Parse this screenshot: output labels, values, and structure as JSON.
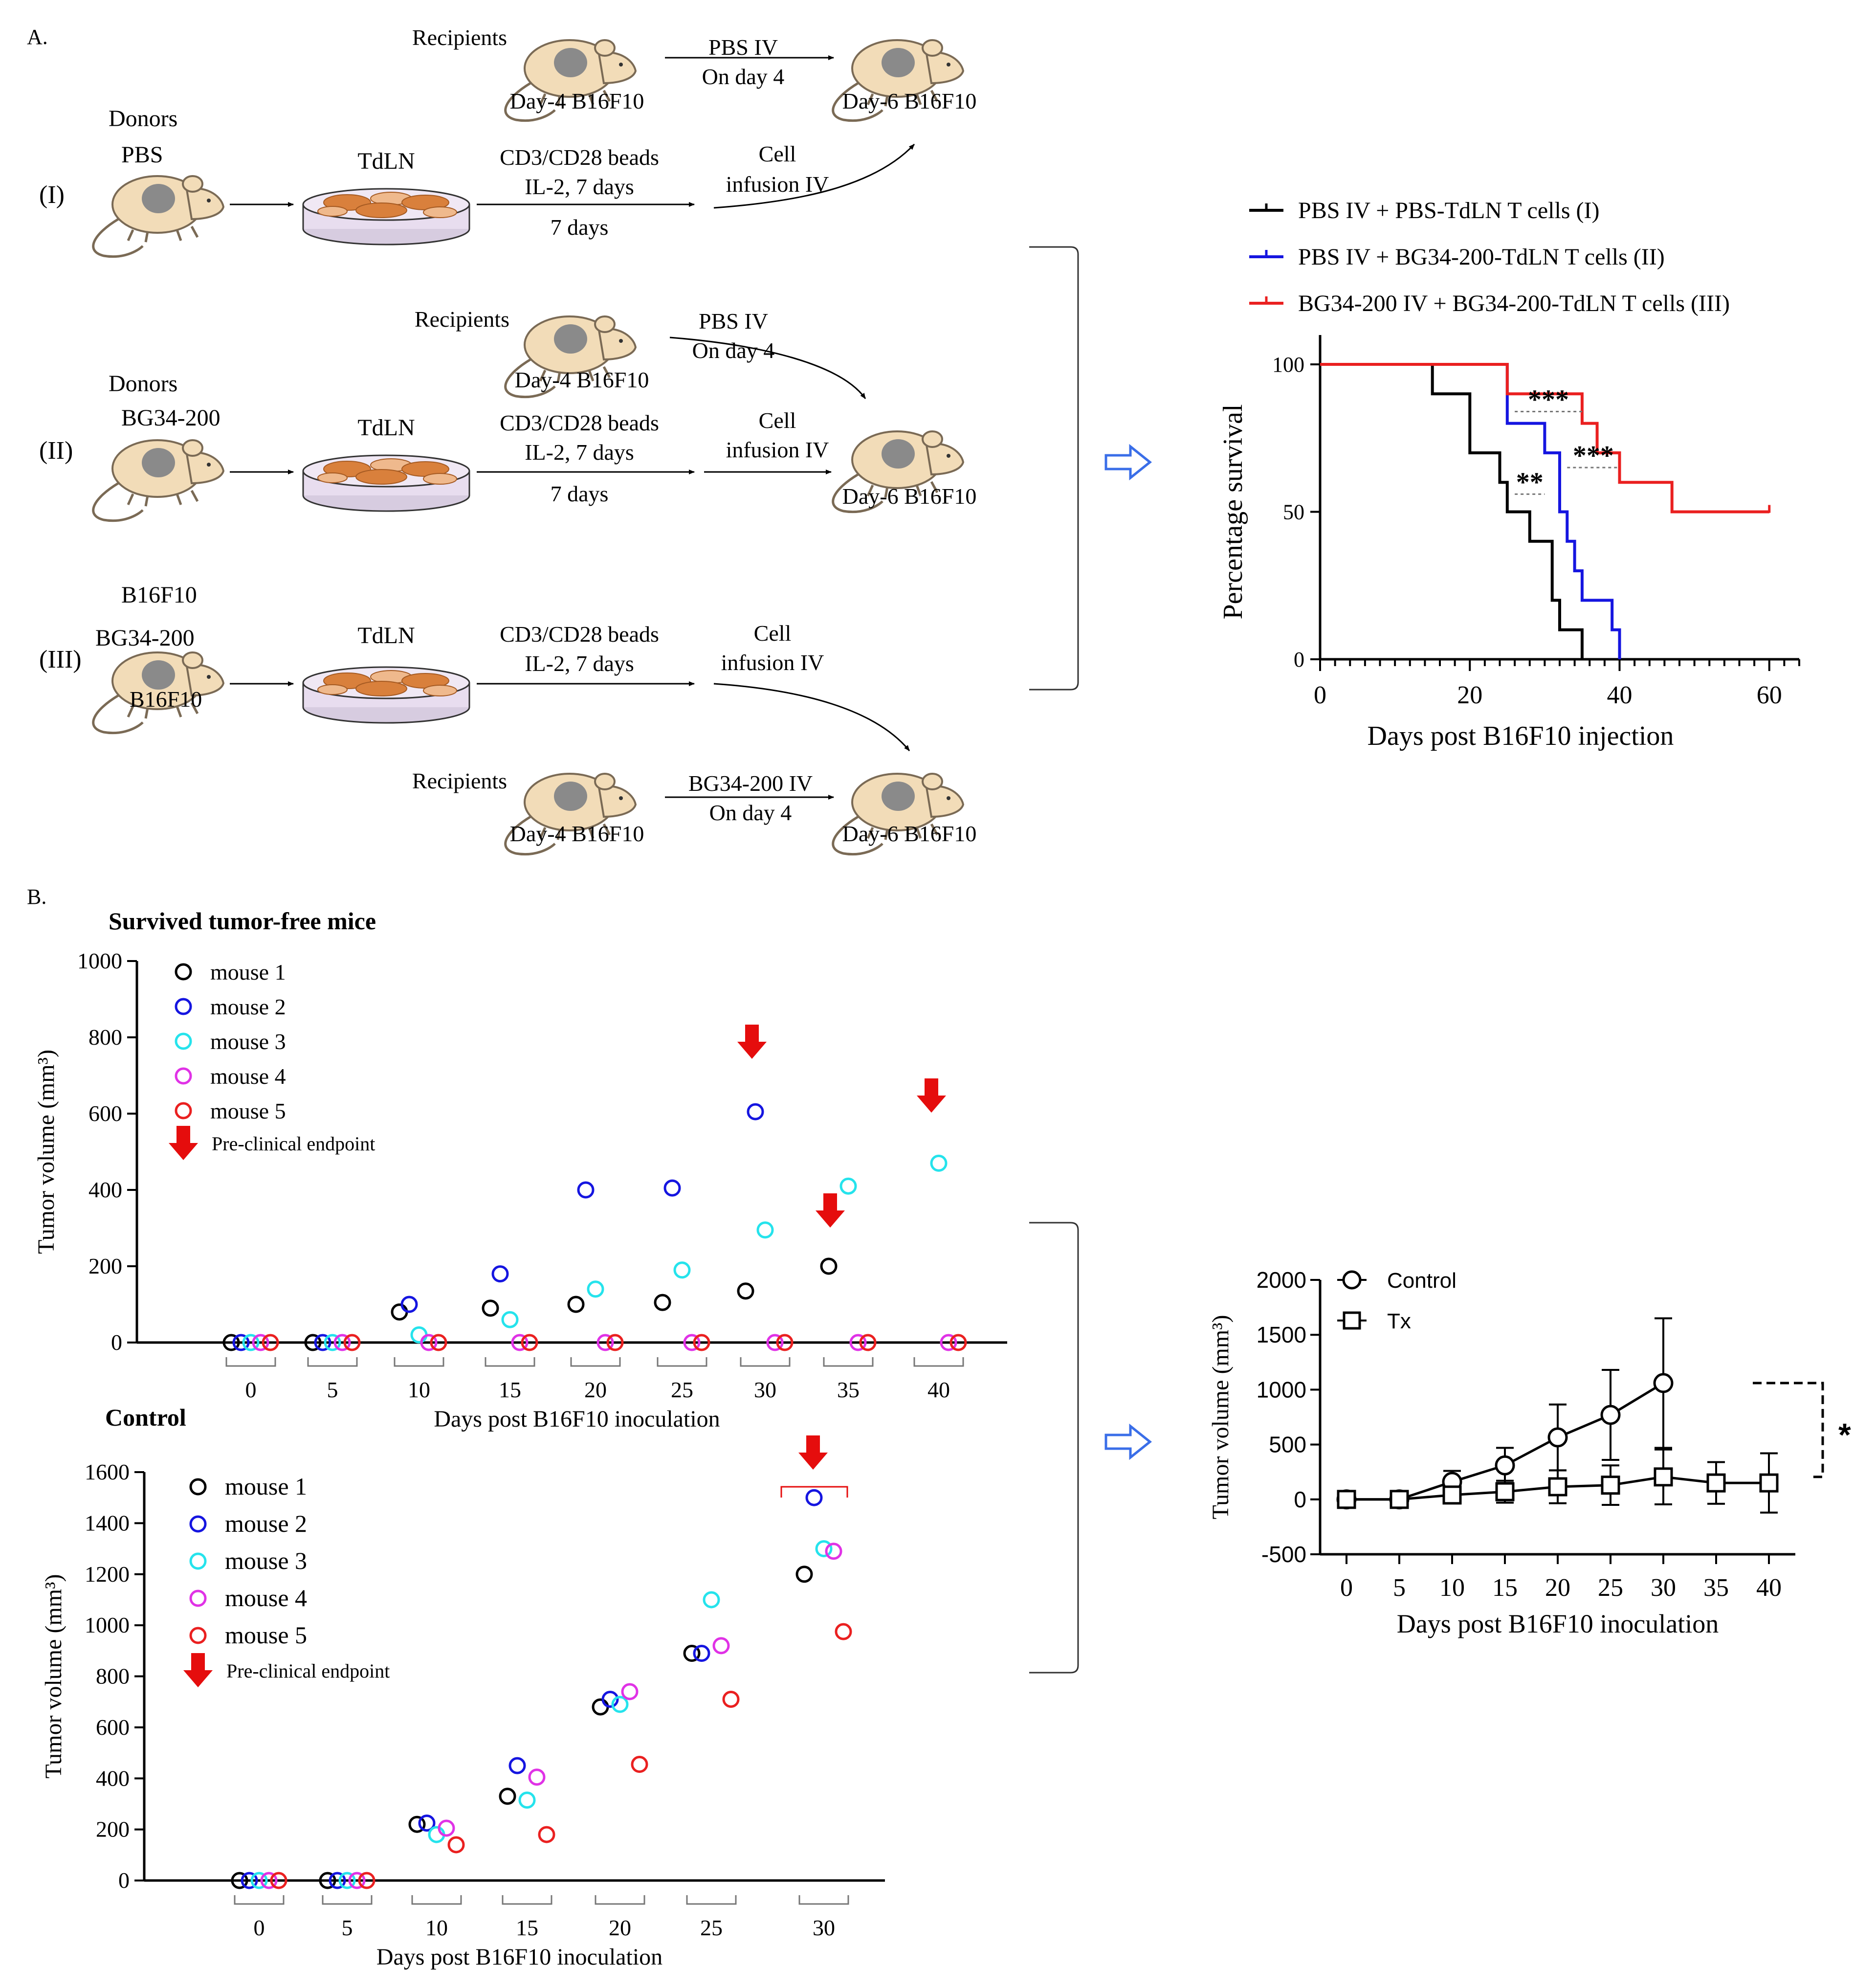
{
  "colors": {
    "black": "#000000",
    "blue": "#1515e0",
    "cyan": "#25e3ec",
    "magenta": "#e032e6",
    "red": "#ea2020",
    "arrow_red": "#e50d0d",
    "mouse_body": "#f2dcb8",
    "mouse_outline": "#7a6a55",
    "mouse_tumor": "#8a8a8a",
    "dish_fill": "#e8ddef",
    "dish_line": "#333333",
    "cell_fill": "#d9803c",
    "cell_light": "#efb98d",
    "hollow_arrow": "#3a6ee8",
    "dashed_grey": "#777777"
  },
  "panelA": {
    "label": "A.",
    "rows": [
      {
        "roman": "(I)",
        "donor_title": "Donors",
        "donor_treatment": "PBS",
        "tdln": "TdLN",
        "culture_line1": "CD3/CD28 beads",
        "culture_line2": "IL-2, 7 days",
        "duration": "7 days",
        "infusion_line1": "Cell",
        "infusion_line2": "infusion IV",
        "recipients": "Recipients",
        "recipient_day": "Day-4 B16F10",
        "treat_line1": "PBS IV",
        "treat_line2": "On day 4",
        "final_day": "Day-6 B16F10"
      },
      {
        "roman": "(II)",
        "donor_title": "Donors",
        "donor_treatment": "BG34-200",
        "tdln": "TdLN",
        "culture_line1": "CD3/CD28 beads",
        "culture_line2": "IL-2, 7 days",
        "duration": "7 days",
        "infusion_line1": "Cell",
        "infusion_line2": "infusion IV",
        "recipients": "Recipients",
        "recipient_day": "Day-4 B16F10",
        "treat_line1": "PBS IV",
        "treat_line2": "On day 4",
        "final_day": "Day-6 B16F10"
      },
      {
        "roman": "(III)",
        "donor_title": "B16F10",
        "donor_treatment": "BG34-200",
        "donor_extra": "B16F10",
        "tdln": "TdLN",
        "culture_line1": "CD3/CD28 beads",
        "culture_line2": "IL-2, 7 days",
        "infusion_line1": "Cell",
        "infusion_line2": "infusion IV",
        "recipients": "Recipients",
        "recipient_day": "Day-4 B16F10",
        "treat_line1": "BG34-200  IV",
        "treat_line2": "On day 4",
        "final_day": "Day-6 B16F10"
      }
    ]
  },
  "panelB": {
    "label": "B.",
    "top_title": "Survived tumor-free mice",
    "bottom_title": "Control"
  },
  "chart_data": [
    {
      "id": "survival",
      "type": "line",
      "title": "",
      "xlabel": "Days post B16F10 injection",
      "ylabel": "Percentage survival",
      "xlim": [
        0,
        64
      ],
      "ylim": [
        0,
        100
      ],
      "xticks": [
        0,
        20,
        40,
        60
      ],
      "yticks": [
        0,
        50,
        100
      ],
      "series": [
        {
          "name": "PBS IV + PBS-TdLN T cells (I)",
          "color": "#000000",
          "steps": [
            [
              0,
              100
            ],
            [
              15,
              100
            ],
            [
              15,
              90
            ],
            [
              20,
              90
            ],
            [
              20,
              70
            ],
            [
              24,
              70
            ],
            [
              24,
              60
            ],
            [
              25,
              60
            ],
            [
              25,
              50
            ],
            [
              28,
              50
            ],
            [
              28,
              40
            ],
            [
              31,
              40
            ],
            [
              31,
              20
            ],
            [
              32,
              20
            ],
            [
              32,
              10
            ],
            [
              35,
              10
            ],
            [
              35,
              0
            ]
          ]
        },
        {
          "name": "PBS IV + BG34-200-TdLN T cells (II)",
          "color": "#1515e0",
          "steps": [
            [
              0,
              100
            ],
            [
              25,
              100
            ],
            [
              25,
              80
            ],
            [
              30,
              80
            ],
            [
              30,
              70
            ],
            [
              32,
              70
            ],
            [
              32,
              50
            ],
            [
              33,
              50
            ],
            [
              33,
              40
            ],
            [
              34,
              40
            ],
            [
              34,
              30
            ],
            [
              35,
              30
            ],
            [
              35,
              20
            ],
            [
              39,
              20
            ],
            [
              39,
              10
            ],
            [
              40,
              10
            ],
            [
              40,
              0
            ]
          ]
        },
        {
          "name": "BG34-200 IV + BG34-200-TdLN T cells (III)",
          "color": "#ea2020",
          "steps": [
            [
              0,
              100
            ],
            [
              25,
              100
            ],
            [
              25,
              90
            ],
            [
              35,
              90
            ],
            [
              35,
              80
            ],
            [
              37,
              80
            ],
            [
              37,
              70
            ],
            [
              40,
              70
            ],
            [
              40,
              60
            ],
            [
              47,
              60
            ],
            [
              47,
              50
            ],
            [
              60,
              50
            ]
          ]
        }
      ],
      "annotations": [
        "***",
        "**",
        "***"
      ],
      "legend_placement": "top"
    },
    {
      "id": "survivors",
      "type": "scatter",
      "title": "Survived tumor-free mice",
      "xlabel": "Days post B16F10 inoculation",
      "ylabel": "Tumor volume (mm³)",
      "ylim": [
        0,
        1000
      ],
      "yticks": [
        0,
        200,
        400,
        600,
        800,
        1000
      ],
      "categories": [
        "0",
        "5",
        "10",
        "15",
        "20",
        "25",
        "30",
        "35",
        "40"
      ],
      "series": [
        {
          "name": "mouse 1",
          "color": "#000000",
          "values": [
            0,
            0,
            80,
            90,
            100,
            105,
            135,
            200,
            null
          ]
        },
        {
          "name": "mouse 2",
          "color": "#1515e0",
          "values": [
            0,
            0,
            100,
            180,
            400,
            405,
            605,
            null,
            null
          ]
        },
        {
          "name": "mouse 3",
          "color": "#25e3ec",
          "values": [
            0,
            0,
            20,
            60,
            140,
            190,
            295,
            410,
            470
          ]
        },
        {
          "name": "mouse 4",
          "color": "#e032e6",
          "values": [
            0,
            0,
            0,
            0,
            0,
            0,
            0,
            0,
            0
          ]
        },
        {
          "name": "mouse 5",
          "color": "#ea2020",
          "values": [
            0,
            0,
            0,
            0,
            0,
            0,
            0,
            0,
            0
          ]
        }
      ],
      "endpoint_label": "Pre-clinical endpoint",
      "endpoints_at": [
        "30",
        "35",
        "40"
      ]
    },
    {
      "id": "control",
      "type": "scatter",
      "title": "Control",
      "xlabel": "Days post B16F10 inoculation",
      "ylabel": "Tumor volume (mm³)",
      "ylim": [
        0,
        1600
      ],
      "yticks": [
        0,
        200,
        400,
        600,
        800,
        1000,
        1200,
        1400,
        1600
      ],
      "categories": [
        "0",
        "5",
        "10",
        "15",
        "20",
        "25",
        "30"
      ],
      "series": [
        {
          "name": "mouse 1",
          "color": "#000000",
          "values": [
            0,
            0,
            220,
            330,
            680,
            890,
            1200
          ]
        },
        {
          "name": "mouse 2",
          "color": "#1515e0",
          "values": [
            0,
            0,
            225,
            450,
            710,
            890,
            1500
          ]
        },
        {
          "name": "mouse 3",
          "color": "#25e3ec",
          "values": [
            0,
            0,
            180,
            315,
            690,
            1100,
            1300
          ]
        },
        {
          "name": "mouse 4",
          "color": "#e032e6",
          "values": [
            0,
            0,
            205,
            405,
            740,
            920,
            1290
          ]
        },
        {
          "name": "mouse 5",
          "color": "#ea2020",
          "values": [
            0,
            0,
            140,
            180,
            455,
            710,
            975
          ]
        }
      ],
      "endpoint_label": "Pre-clinical endpoint",
      "endpoints_at": [
        "30"
      ]
    },
    {
      "id": "summary",
      "type": "line",
      "title": "",
      "xlabel": "Days post B16F10 inoculation",
      "ylabel": "Tumor volume (mm³)",
      "xlim": [
        -2.5,
        42.5
      ],
      "ylim": [
        -500,
        2000
      ],
      "xticks": [
        0,
        5,
        10,
        15,
        20,
        25,
        30,
        35,
        40
      ],
      "yticks": [
        -500,
        0,
        500,
        1000,
        1500,
        2000
      ],
      "series": [
        {
          "name": "Control",
          "marker": "circle",
          "x": [
            0,
            5,
            10,
            15,
            20,
            25,
            30
          ],
          "y": [
            0,
            0,
            160,
            310,
            565,
            770,
            1060
          ],
          "err": [
            0,
            0,
            100,
            160,
            300,
            410,
            590
          ]
        },
        {
          "name": "Tx",
          "marker": "square",
          "x": [
            0,
            5,
            10,
            15,
            20,
            25,
            30,
            35,
            40
          ],
          "y": [
            0,
            0,
            40,
            70,
            115,
            130,
            205,
            150,
            150
          ],
          "err": [
            0,
            0,
            60,
            100,
            150,
            180,
            250,
            190,
            270
          ]
        }
      ],
      "significance": "*",
      "legend_placement": "top-left"
    }
  ]
}
